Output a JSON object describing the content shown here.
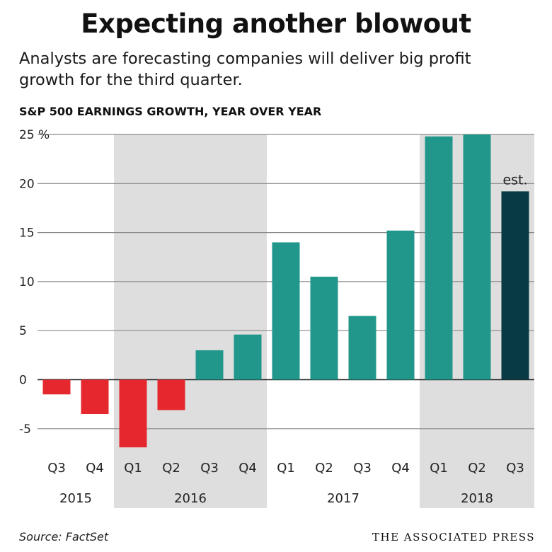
{
  "title": "Expecting another blowout",
  "subtitle": "Analysts are forecasting companies will deliver big profit growth for the third quarter.",
  "footer": {
    "source": "Source: FactSet",
    "credit": "THE ASSOCIATED PRESS"
  },
  "chart_data": {
    "type": "bar",
    "title": "S&P 500 EARNINGS GROWTH, YEAR OVER YEAR",
    "categories": [
      "Q3",
      "Q4",
      "Q1",
      "Q2",
      "Q3",
      "Q4",
      "Q1",
      "Q2",
      "Q3",
      "Q4",
      "Q1",
      "Q2",
      "Q3"
    ],
    "years": [
      {
        "label": "2015",
        "quarters": 2,
        "shaded": false
      },
      {
        "label": "2016",
        "quarters": 4,
        "shaded": true
      },
      {
        "label": "2017",
        "quarters": 4,
        "shaded": false
      },
      {
        "label": "2018",
        "quarters": 3,
        "shaded": true
      }
    ],
    "values": [
      -1.5,
      -3.5,
      -6.9,
      -3.1,
      3.0,
      4.6,
      14.0,
      10.5,
      6.5,
      15.2,
      24.8,
      25.0,
      19.2
    ],
    "estimated": [
      false,
      false,
      false,
      false,
      false,
      false,
      false,
      false,
      false,
      false,
      false,
      false,
      true
    ],
    "annotation": "est.",
    "ylim": [
      -7,
      25
    ],
    "yticks": [
      25,
      20,
      15,
      10,
      5,
      0,
      -5
    ],
    "ytick_labels": [
      "25 %",
      "20",
      "15",
      "10",
      "5",
      "0",
      "-5"
    ],
    "grid": true,
    "colors": {
      "positive": "#21978b",
      "negative": "#e5282e",
      "estimate": "#073a43",
      "shade": "#dedede",
      "grid": "#8a8a8a",
      "zero": "#222222"
    }
  }
}
